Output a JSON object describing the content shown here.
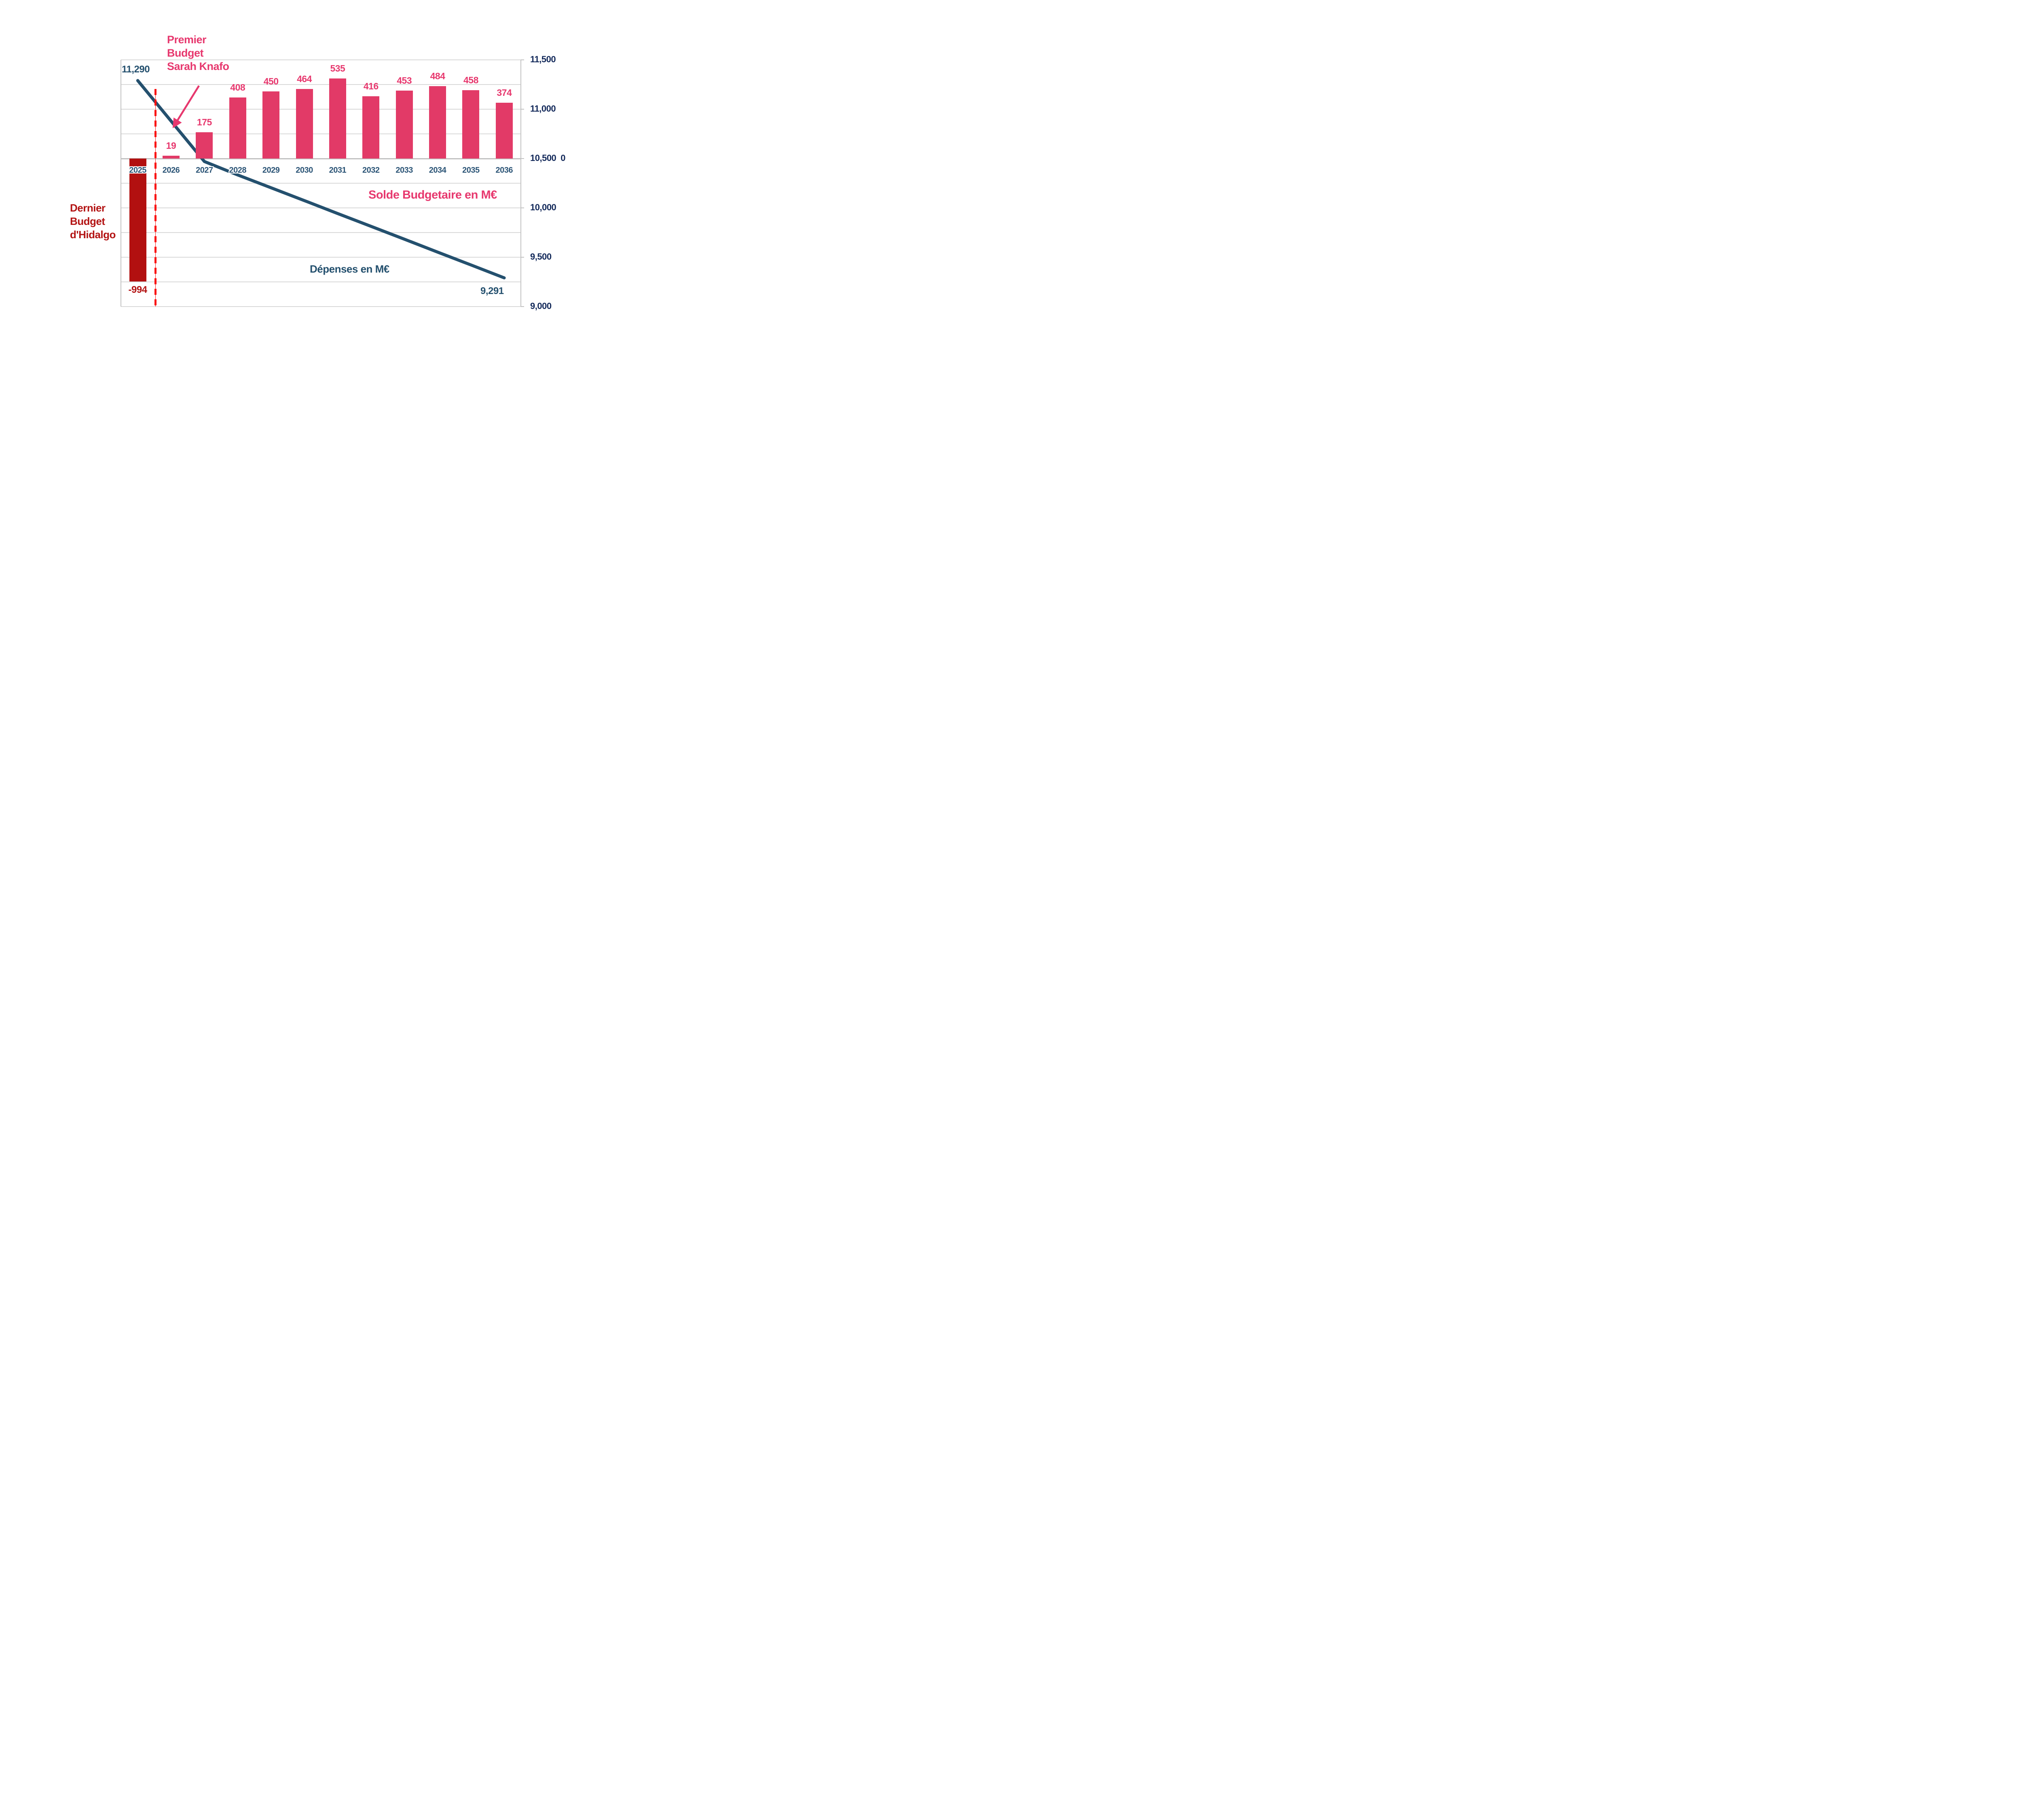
{
  "chart_data": {
    "type": "combo",
    "categories": [
      "2025",
      "2026",
      "2027",
      "2028",
      "2029",
      "2030",
      "2031",
      "2032",
      "2033",
      "2034",
      "2035",
      "2036"
    ],
    "series": [
      {
        "name": "Solde Budgetaire en M€",
        "type": "bar",
        "color": "#e23a67",
        "negative_color": "#b21010",
        "values": [
          -994,
          19,
          175,
          408,
          450,
          464,
          535,
          416,
          453,
          484,
          458,
          374
        ]
      },
      {
        "name": "Dépenses en M€",
        "type": "line",
        "color": "#24506e",
        "values": [
          11290,
          10880,
          10470,
          10334,
          10204,
          10074,
          9943,
          9813,
          9683,
          9552,
          9422,
          9291
        ],
        "endpoint_labels": {
          "start": "11,290",
          "end": "9,291"
        },
        "note": "only first and last points are labeled on the chart; intermediate values estimated from gridlines"
      }
    ],
    "y_axis_right": {
      "min": 9000,
      "max": 11500,
      "tick_step": 500,
      "grid_step": 250,
      "secondary_zero_label": "0"
    },
    "x_axis": {
      "bar_baseline_value": 10500
    },
    "grid": true,
    "annotations": {
      "premier_budget": {
        "lines": [
          "Premier",
          "Budget",
          "Sarah Knafo"
        ],
        "color": "#e7386e",
        "arrow_to": "2026 bar"
      },
      "dernier_budget": {
        "lines": [
          "Dernier",
          "Budget",
          "d'Hidalgo"
        ],
        "color": "#b31313"
      },
      "divider": {
        "type": "dashed-vertical-line",
        "color": "#fa0f0f",
        "between": [
          "2025",
          "2026"
        ]
      }
    },
    "colors": {
      "grid": "#d9d9d9",
      "axis": "#c2c2c2",
      "year_labels": "#2b5476",
      "right_axis_labels": "#13295a",
      "bar_value_labels": "#e7386e",
      "negative_value_label": "#b31313"
    }
  }
}
